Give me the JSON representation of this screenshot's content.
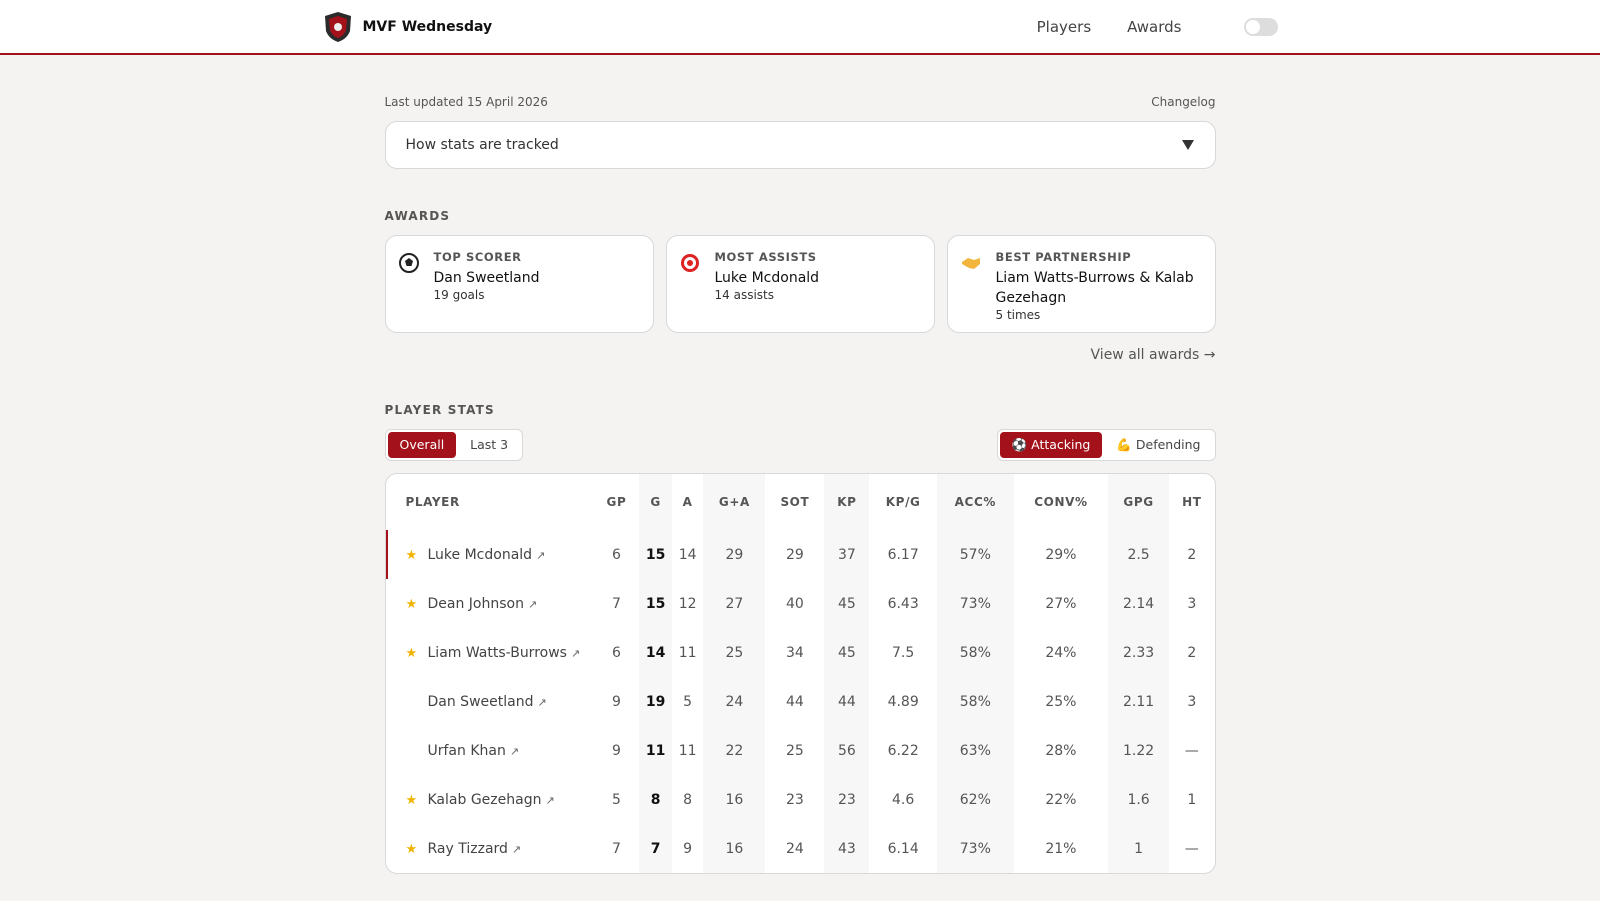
{
  "header": {
    "brand": "MVF Wednesday",
    "nav": [
      "Players",
      "Awards"
    ]
  },
  "meta": {
    "last_updated": "Last updated 15 April 2026",
    "changelog": "Changelog"
  },
  "accordion": {
    "label": "How stats are tracked"
  },
  "awards": {
    "heading": "AWARDS",
    "cards": [
      {
        "title": "TOP SCORER",
        "name": "Dan Sweetland",
        "detail": "19 goals"
      },
      {
        "title": "MOST ASSISTS",
        "name": "Luke Mcdonald",
        "detail": "14 assists"
      },
      {
        "title": "BEST PARTNERSHIP",
        "name": "Liam Watts-Burrows & Kalab Gezehagn",
        "detail": "5 times"
      }
    ],
    "view_all": "View all awards →"
  },
  "player_stats": {
    "heading": "PLAYER STATS",
    "range_tabs": [
      "Overall",
      "Last 3"
    ],
    "mode_tabs": [
      "⚽ Attacking",
      "💪 Defending"
    ],
    "table": {
      "columns": [
        "PLAYER",
        "GP",
        "G",
        "A",
        "G+A",
        "SOT",
        "KP",
        "KP/G",
        "ACC%",
        "CONV%",
        "GPG",
        "HT"
      ],
      "rows": [
        {
          "star": true,
          "name": "Luke Mcdonald",
          "stats": [
            6,
            15,
            14,
            29,
            29,
            37,
            6.17,
            "57%",
            "29%",
            2.5,
            2
          ]
        },
        {
          "star": true,
          "name": "Dean Johnson",
          "stats": [
            7,
            15,
            12,
            27,
            40,
            45,
            6.43,
            "73%",
            "27%",
            2.14,
            3
          ]
        },
        {
          "star": true,
          "name": "Liam Watts-Burrows",
          "stats": [
            6,
            14,
            11,
            25,
            34,
            45,
            7.5,
            "58%",
            "24%",
            2.33,
            2
          ]
        },
        {
          "star": false,
          "name": "Dan Sweetland",
          "stats": [
            9,
            19,
            5,
            24,
            44,
            44,
            4.89,
            "58%",
            "25%",
            2.11,
            3
          ]
        },
        {
          "star": false,
          "name": "Urfan Khan",
          "stats": [
            9,
            11,
            11,
            22,
            25,
            56,
            6.22,
            "63%",
            "28%",
            1.22,
            "—"
          ]
        },
        {
          "star": true,
          "name": "Kalab Gezehagn",
          "stats": [
            5,
            8,
            8,
            16,
            23,
            23,
            4.6,
            "62%",
            "22%",
            1.6,
            1
          ]
        },
        {
          "star": true,
          "name": "Ray Tizzard",
          "stats": [
            7,
            7,
            9,
            16,
            24,
            43,
            6.14,
            "73%",
            "21%",
            1,
            "—"
          ]
        }
      ]
    }
  }
}
